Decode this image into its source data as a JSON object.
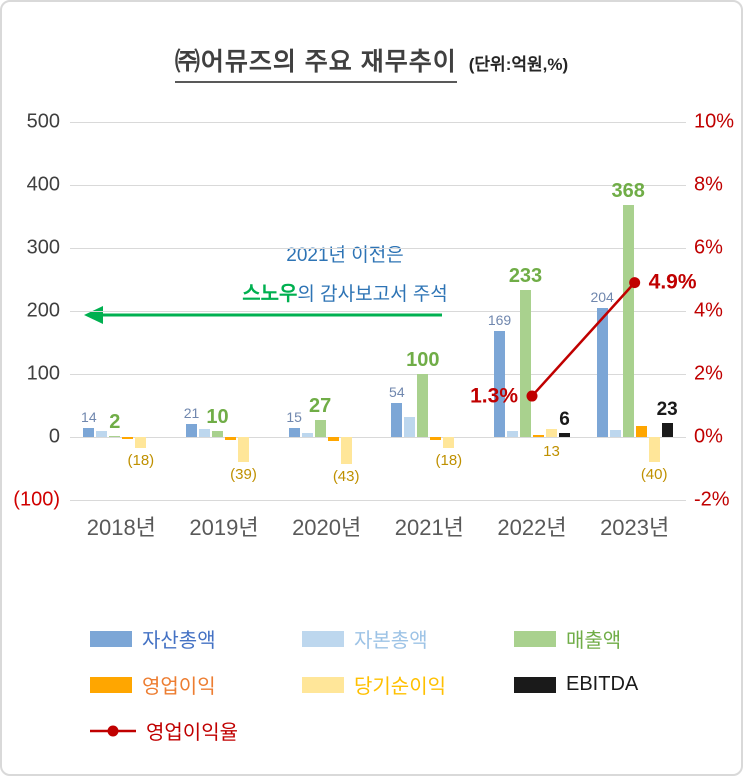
{
  "title": "㈜어뮤즈의 주요 재무추이",
  "unit_label": "(단위:억원,%)",
  "annotation": {
    "line1": "2021년 이전은",
    "highlight": "스노우",
    "line2_rest": "의 감사보고서 주석"
  },
  "chart_data": {
    "type": "bar",
    "title": "㈜어뮤즈의 주요 재무추이",
    "unit": "억원, %",
    "grid": true,
    "categories": [
      "2018년",
      "2019년",
      "2020년",
      "2021년",
      "2022년",
      "2023년"
    ],
    "left_axis": {
      "min": -100,
      "max": 500,
      "ticks": [
        {
          "value": 500,
          "label": "500",
          "color": "#404040"
        },
        {
          "value": 400,
          "label": "400",
          "color": "#404040"
        },
        {
          "value": 300,
          "label": "300",
          "color": "#404040"
        },
        {
          "value": 200,
          "label": "200",
          "color": "#404040"
        },
        {
          "value": 100,
          "label": "100",
          "color": "#404040"
        },
        {
          "value": 0,
          "label": "0",
          "color": "#404040"
        },
        {
          "value": -100,
          "label": "(100)",
          "color": "#D00000"
        }
      ]
    },
    "right_axis": {
      "min": -2,
      "max": 10,
      "color": "#C00000",
      "ticks": [
        {
          "value": 10,
          "label": "10%"
        },
        {
          "value": 8,
          "label": "8%"
        },
        {
          "value": 6,
          "label": "6%"
        },
        {
          "value": 4,
          "label": "4%"
        },
        {
          "value": 2,
          "label": "2%"
        },
        {
          "value": 0,
          "label": "0%"
        },
        {
          "value": -2,
          "label": "-2%"
        }
      ]
    },
    "series": [
      {
        "name": "자산총액",
        "type": "bar",
        "color": "#7CA6D6",
        "values": [
          14,
          21,
          15,
          54,
          169,
          204
        ],
        "labels": [
          "14",
          "21",
          "15",
          "54",
          "169",
          "204"
        ]
      },
      {
        "name": "자본총액",
        "type": "bar",
        "color": "#BDD7EE",
        "values": [
          10,
          13,
          7,
          31,
          9,
          11
        ],
        "labels": [
          "",
          "",
          "",
          "",
          "",
          ""
        ]
      },
      {
        "name": "매출액",
        "type": "bar",
        "color": "#A9D18E",
        "values": [
          2,
          10,
          27,
          100,
          233,
          368
        ],
        "labels": [
          "2",
          "10",
          "27",
          "100",
          "233",
          "368"
        ]
      },
      {
        "name": "영업이익",
        "type": "bar",
        "color": "#FFA600",
        "values": [
          -3,
          -5,
          -7,
          -4,
          3,
          17
        ],
        "labels": [
          "",
          "",
          "",
          "",
          "",
          ""
        ]
      },
      {
        "name": "당기순이익",
        "type": "bar",
        "color": "#FFE699",
        "values": [
          -18,
          -39,
          -43,
          -18,
          13,
          -40
        ],
        "labels": [
          "(18)",
          "(39)",
          "(43)",
          "(18)",
          "13",
          "(40)"
        ]
      },
      {
        "name": "EBITDA",
        "type": "bar",
        "color": "#1A1A1A",
        "values": [
          0,
          0,
          0,
          0,
          6,
          23
        ],
        "labels": [
          "",
          "",
          "",
          "",
          "6",
          "23"
        ]
      },
      {
        "name": "영업이익율",
        "type": "line",
        "color": "#C00000",
        "values": [
          null,
          null,
          null,
          null,
          1.3,
          4.9
        ],
        "labels": [
          "",
          "",
          "",
          "",
          "1.3%",
          "4.9%"
        ]
      }
    ],
    "legend_position": "bottom"
  },
  "legend": {
    "rows": [
      [
        {
          "label": "자산총액",
          "swatch": "#7CA6D6",
          "text_color": "#4472C4",
          "kind": "bar"
        },
        {
          "label": "자본총액",
          "swatch": "#BDD7EE",
          "text_color": "#9DC3E6",
          "kind": "bar"
        },
        {
          "label": "매출액",
          "swatch": "#A9D18E",
          "text_color": "#70AD47",
          "kind": "bar"
        }
      ],
      [
        {
          "label": "영업이익",
          "swatch": "#FFA600",
          "text_color": "#ED7D31",
          "kind": "bar"
        },
        {
          "label": "당기순이익",
          "swatch": "#FFE699",
          "text_color": "#FFC000",
          "kind": "bar"
        },
        {
          "label": "EBITDA",
          "swatch": "#1A1A1A",
          "text_color": "#1A1A1A",
          "kind": "bar"
        }
      ],
      [
        {
          "label": "영업이익율",
          "swatch": "#C00000",
          "text_color": "#C00000",
          "kind": "line"
        }
      ]
    ]
  }
}
